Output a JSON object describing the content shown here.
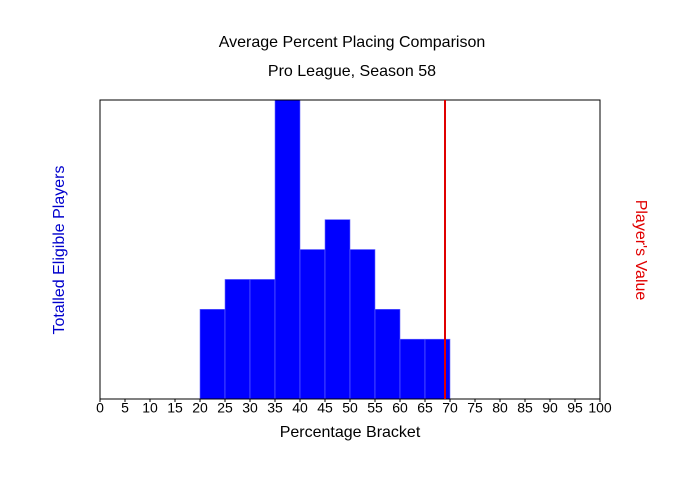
{
  "chart_data": {
    "type": "histogram",
    "title": "Average Percent Placing Comparison",
    "subtitle": "Pro League, Season 58",
    "x_label": "Percentage Bracket",
    "y_label": "Totalled Eligible Players",
    "bins": [
      0,
      5,
      10,
      15,
      20,
      25,
      30,
      35,
      40,
      45,
      50,
      55,
      60,
      65,
      70,
      75,
      80,
      85,
      90,
      95,
      100
    ],
    "values": [
      0,
      0,
      0,
      0,
      3,
      4,
      4,
      10,
      5,
      6,
      5,
      3,
      2,
      2,
      0,
      0,
      0,
      0,
      0,
      0
    ],
    "color": "#0000ff",
    "xlim": [
      0,
      100
    ],
    "ylim": [
      0,
      10
    ],
    "xticks": [
      0,
      5,
      10,
      15,
      20,
      25,
      30,
      35,
      40,
      45,
      50,
      55,
      60,
      65,
      70,
      75,
      80,
      85,
      90,
      95,
      100
    ],
    "marker": {
      "label": "Player's Value",
      "value": 69,
      "color": "#e00000"
    }
  }
}
